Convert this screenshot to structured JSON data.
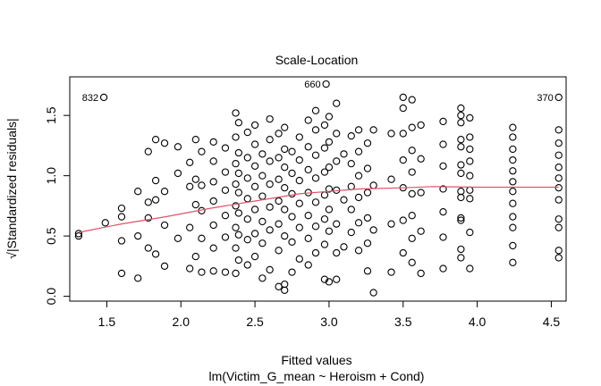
{
  "chart_data": {
    "type": "scatter",
    "title": "Scale-Location",
    "xlabel": "Fitted values",
    "subtitle": "lm(Victim_G_mean ~ Heroism + Cond)",
    "ylabel": "√|Standardized residuals|",
    "xlim": [
      1.25,
      4.6
    ],
    "ylim": [
      -0.04,
      1.82
    ],
    "x_ticks": [
      "1.5",
      "2.0",
      "2.5",
      "3.0",
      "3.5",
      "4.0",
      "4.5"
    ],
    "y_ticks": [
      "0.0",
      "0.5",
      "1.0",
      "1.5"
    ],
    "grid": false,
    "x_levels": [
      1.31,
      1.49,
      1.6,
      1.71,
      1.78,
      1.83,
      1.89,
      1.98,
      2.06,
      2.1,
      2.14,
      2.22,
      2.3,
      2.37,
      2.39,
      2.45,
      2.5,
      2.55,
      2.6,
      2.66,
      2.7,
      2.75,
      2.8,
      2.86,
      2.91,
      2.97,
      3.0,
      3.05,
      3.1,
      3.15,
      3.2,
      3.26,
      3.3,
      3.42,
      3.5,
      3.56,
      3.62,
      3.77,
      3.89,
      3.95,
      4.1,
      4.24,
      4.55
    ],
    "points": [
      {
        "x": 1.31,
        "y": 0.5
      },
      {
        "x": 1.31,
        "y": 0.52
      },
      {
        "x": 1.49,
        "y": 0.61
      },
      {
        "x": 1.6,
        "y": 0.19
      },
      {
        "x": 1.6,
        "y": 0.46
      },
      {
        "x": 1.6,
        "y": 0.66
      },
      {
        "x": 1.6,
        "y": 0.73
      },
      {
        "x": 1.71,
        "y": 0.15
      },
      {
        "x": 1.71,
        "y": 0.5
      },
      {
        "x": 1.71,
        "y": 0.87
      },
      {
        "x": 1.78,
        "y": 0.4
      },
      {
        "x": 1.78,
        "y": 0.65
      },
      {
        "x": 1.78,
        "y": 0.78
      },
      {
        "x": 1.78,
        "y": 1.2
      },
      {
        "x": 1.83,
        "y": 0.35
      },
      {
        "x": 1.83,
        "y": 0.8
      },
      {
        "x": 1.83,
        "y": 0.96
      },
      {
        "x": 1.83,
        "y": 1.3
      },
      {
        "x": 1.89,
        "y": 0.25
      },
      {
        "x": 1.89,
        "y": 0.59
      },
      {
        "x": 1.89,
        "y": 0.87
      },
      {
        "x": 1.89,
        "y": 1.27
      },
      {
        "x": 1.98,
        "y": 0.48
      },
      {
        "x": 1.98,
        "y": 1.02
      },
      {
        "x": 1.98,
        "y": 1.24
      },
      {
        "x": 2.06,
        "y": 0.23
      },
      {
        "x": 2.06,
        "y": 0.57
      },
      {
        "x": 2.06,
        "y": 0.91
      },
      {
        "x": 2.06,
        "y": 1.11
      },
      {
        "x": 2.1,
        "y": 0.33
      },
      {
        "x": 2.1,
        "y": 0.76
      },
      {
        "x": 2.1,
        "y": 0.97
      },
      {
        "x": 2.1,
        "y": 1.3
      },
      {
        "x": 2.14,
        "y": 0.2
      },
      {
        "x": 2.14,
        "y": 0.48
      },
      {
        "x": 2.14,
        "y": 0.71
      },
      {
        "x": 2.14,
        "y": 0.92
      },
      {
        "x": 2.14,
        "y": 1.2
      },
      {
        "x": 2.22,
        "y": 0.21
      },
      {
        "x": 2.22,
        "y": 0.4
      },
      {
        "x": 2.22,
        "y": 0.59
      },
      {
        "x": 2.22,
        "y": 0.79
      },
      {
        "x": 2.22,
        "y": 0.95
      },
      {
        "x": 2.22,
        "y": 1.12
      },
      {
        "x": 2.22,
        "y": 1.28
      },
      {
        "x": 2.3,
        "y": 0.2
      },
      {
        "x": 2.3,
        "y": 0.49
      },
      {
        "x": 2.3,
        "y": 0.67
      },
      {
        "x": 2.3,
        "y": 0.88
      },
      {
        "x": 2.3,
        "y": 1.03
      },
      {
        "x": 2.3,
        "y": 1.23
      },
      {
        "x": 2.37,
        "y": 0.19
      },
      {
        "x": 2.37,
        "y": 0.4
      },
      {
        "x": 2.37,
        "y": 0.57
      },
      {
        "x": 2.37,
        "y": 0.75
      },
      {
        "x": 2.37,
        "y": 0.93
      },
      {
        "x": 2.37,
        "y": 1.1
      },
      {
        "x": 2.37,
        "y": 1.32
      },
      {
        "x": 2.37,
        "y": 1.52
      },
      {
        "x": 2.39,
        "y": 0.3
      },
      {
        "x": 2.39,
        "y": 0.51
      },
      {
        "x": 2.39,
        "y": 0.69
      },
      {
        "x": 2.39,
        "y": 0.86
      },
      {
        "x": 2.39,
        "y": 1.02
      },
      {
        "x": 2.39,
        "y": 1.19
      },
      {
        "x": 2.39,
        "y": 1.44
      },
      {
        "x": 2.45,
        "y": 0.26
      },
      {
        "x": 2.45,
        "y": 0.47
      },
      {
        "x": 2.45,
        "y": 0.64
      },
      {
        "x": 2.45,
        "y": 0.81
      },
      {
        "x": 2.45,
        "y": 0.98
      },
      {
        "x": 2.45,
        "y": 1.15
      },
      {
        "x": 2.45,
        "y": 1.36
      },
      {
        "x": 2.5,
        "y": 0.33
      },
      {
        "x": 2.5,
        "y": 0.52
      },
      {
        "x": 2.5,
        "y": 0.72
      },
      {
        "x": 2.5,
        "y": 0.91
      },
      {
        "x": 2.5,
        "y": 1.08
      },
      {
        "x": 2.5,
        "y": 1.26
      },
      {
        "x": 2.5,
        "y": 1.42
      },
      {
        "x": 2.55,
        "y": 0.15
      },
      {
        "x": 2.55,
        "y": 0.44
      },
      {
        "x": 2.55,
        "y": 0.62
      },
      {
        "x": 2.55,
        "y": 0.83
      },
      {
        "x": 2.55,
        "y": 1.0
      },
      {
        "x": 2.55,
        "y": 1.18
      },
      {
        "x": 2.6,
        "y": 0.22
      },
      {
        "x": 2.6,
        "y": 0.55
      },
      {
        "x": 2.6,
        "y": 0.74
      },
      {
        "x": 2.6,
        "y": 0.93
      },
      {
        "x": 2.6,
        "y": 1.12
      },
      {
        "x": 2.6,
        "y": 1.3
      },
      {
        "x": 2.6,
        "y": 1.47
      },
      {
        "x": 2.66,
        "y": 0.08
      },
      {
        "x": 2.66,
        "y": 0.38
      },
      {
        "x": 2.66,
        "y": 0.6
      },
      {
        "x": 2.66,
        "y": 0.79
      },
      {
        "x": 2.66,
        "y": 0.97
      },
      {
        "x": 2.66,
        "y": 1.15
      },
      {
        "x": 2.66,
        "y": 1.35
      },
      {
        "x": 2.7,
        "y": 0.05
      },
      {
        "x": 2.7,
        "y": 0.1
      },
      {
        "x": 2.7,
        "y": 0.5
      },
      {
        "x": 2.7,
        "y": 0.72
      },
      {
        "x": 2.7,
        "y": 0.9
      },
      {
        "x": 2.7,
        "y": 1.07
      },
      {
        "x": 2.7,
        "y": 1.22
      },
      {
        "x": 2.7,
        "y": 1.4
      },
      {
        "x": 2.75,
        "y": 0.2
      },
      {
        "x": 2.75,
        "y": 0.45
      },
      {
        "x": 2.75,
        "y": 0.66
      },
      {
        "x": 2.75,
        "y": 0.85
      },
      {
        "x": 2.75,
        "y": 1.02
      },
      {
        "x": 2.75,
        "y": 1.2
      },
      {
        "x": 2.8,
        "y": 0.31
      },
      {
        "x": 2.8,
        "y": 0.57
      },
      {
        "x": 2.8,
        "y": 0.77
      },
      {
        "x": 2.8,
        "y": 0.96
      },
      {
        "x": 2.8,
        "y": 1.13
      },
      {
        "x": 2.8,
        "y": 1.32
      },
      {
        "x": 2.86,
        "y": 0.26
      },
      {
        "x": 2.86,
        "y": 0.48
      },
      {
        "x": 2.86,
        "y": 0.67
      },
      {
        "x": 2.86,
        "y": 0.86
      },
      {
        "x": 2.86,
        "y": 1.05
      },
      {
        "x": 2.86,
        "y": 1.24
      },
      {
        "x": 2.86,
        "y": 1.46
      },
      {
        "x": 2.91,
        "y": 0.36
      },
      {
        "x": 2.91,
        "y": 0.58
      },
      {
        "x": 2.91,
        "y": 0.78
      },
      {
        "x": 2.91,
        "y": 0.98
      },
      {
        "x": 2.91,
        "y": 1.17
      },
      {
        "x": 2.91,
        "y": 1.38
      },
      {
        "x": 2.91,
        "y": 1.54
      },
      {
        "x": 2.97,
        "y": 0.14
      },
      {
        "x": 2.97,
        "y": 0.43
      },
      {
        "x": 2.97,
        "y": 0.64
      },
      {
        "x": 2.97,
        "y": 0.84
      },
      {
        "x": 2.97,
        "y": 1.03
      },
      {
        "x": 2.97,
        "y": 1.23
      },
      {
        "x": 2.97,
        "y": 1.42
      },
      {
        "x": 3.0,
        "y": 0.12
      },
      {
        "x": 3.0,
        "y": 0.54
      },
      {
        "x": 3.0,
        "y": 0.72
      },
      {
        "x": 3.0,
        "y": 0.89
      },
      {
        "x": 3.0,
        "y": 1.07
      },
      {
        "x": 3.0,
        "y": 1.28
      },
      {
        "x": 3.0,
        "y": 1.49
      },
      {
        "x": 3.05,
        "y": 0.14
      },
      {
        "x": 3.05,
        "y": 0.36
      },
      {
        "x": 3.05,
        "y": 0.6
      },
      {
        "x": 3.05,
        "y": 0.88
      },
      {
        "x": 3.05,
        "y": 1.12
      },
      {
        "x": 3.05,
        "y": 1.35
      },
      {
        "x": 3.05,
        "y": 1.6
      },
      {
        "x": 3.1,
        "y": 0.41
      },
      {
        "x": 3.1,
        "y": 0.8
      },
      {
        "x": 3.1,
        "y": 1.18
      },
      {
        "x": 3.15,
        "y": 0.53
      },
      {
        "x": 3.15,
        "y": 0.72
      },
      {
        "x": 3.15,
        "y": 0.91
      },
      {
        "x": 3.15,
        "y": 1.1
      },
      {
        "x": 3.15,
        "y": 1.33
      },
      {
        "x": 3.2,
        "y": 0.38
      },
      {
        "x": 3.2,
        "y": 0.61
      },
      {
        "x": 3.2,
        "y": 0.82
      },
      {
        "x": 3.2,
        "y": 1.0
      },
      {
        "x": 3.2,
        "y": 1.2
      },
      {
        "x": 3.2,
        "y": 1.38
      },
      {
        "x": 3.26,
        "y": 0.21
      },
      {
        "x": 3.26,
        "y": 0.44
      },
      {
        "x": 3.26,
        "y": 0.65
      },
      {
        "x": 3.26,
        "y": 0.86
      },
      {
        "x": 3.26,
        "y": 1.06
      },
      {
        "x": 3.26,
        "y": 1.27
      },
      {
        "x": 3.3,
        "y": 0.03
      },
      {
        "x": 3.3,
        "y": 0.55
      },
      {
        "x": 3.3,
        "y": 0.92
      },
      {
        "x": 3.3,
        "y": 1.38
      },
      {
        "x": 3.42,
        "y": 0.2
      },
      {
        "x": 3.42,
        "y": 0.6
      },
      {
        "x": 3.42,
        "y": 0.97
      },
      {
        "x": 3.42,
        "y": 1.35
      },
      {
        "x": 3.5,
        "y": 0.36
      },
      {
        "x": 3.5,
        "y": 0.63
      },
      {
        "x": 3.5,
        "y": 0.9
      },
      {
        "x": 3.5,
        "y": 1.13
      },
      {
        "x": 3.5,
        "y": 1.35
      },
      {
        "x": 3.5,
        "y": 1.56
      },
      {
        "x": 3.5,
        "y": 1.65
      },
      {
        "x": 3.56,
        "y": 0.28
      },
      {
        "x": 3.56,
        "y": 0.48
      },
      {
        "x": 3.56,
        "y": 0.67
      },
      {
        "x": 3.56,
        "y": 0.85
      },
      {
        "x": 3.56,
        "y": 1.03
      },
      {
        "x": 3.56,
        "y": 1.21
      },
      {
        "x": 3.56,
        "y": 1.4
      },
      {
        "x": 3.56,
        "y": 1.63
      },
      {
        "x": 3.62,
        "y": 0.19
      },
      {
        "x": 3.62,
        "y": 0.54
      },
      {
        "x": 3.62,
        "y": 0.86
      },
      {
        "x": 3.62,
        "y": 1.14
      },
      {
        "x": 3.62,
        "y": 1.42
      },
      {
        "x": 3.77,
        "y": 0.23
      },
      {
        "x": 3.77,
        "y": 0.49
      },
      {
        "x": 3.77,
        "y": 0.7
      },
      {
        "x": 3.77,
        "y": 0.89
      },
      {
        "x": 3.77,
        "y": 1.08
      },
      {
        "x": 3.77,
        "y": 1.26
      },
      {
        "x": 3.77,
        "y": 1.45
      },
      {
        "x": 3.89,
        "y": 0.32
      },
      {
        "x": 3.89,
        "y": 0.39
      },
      {
        "x": 3.89,
        "y": 0.63
      },
      {
        "x": 3.89,
        "y": 0.65
      },
      {
        "x": 3.89,
        "y": 0.82
      },
      {
        "x": 3.89,
        "y": 0.87
      },
      {
        "x": 3.89,
        "y": 1.02
      },
      {
        "x": 3.89,
        "y": 1.09
      },
      {
        "x": 3.89,
        "y": 1.24
      },
      {
        "x": 3.89,
        "y": 1.3
      },
      {
        "x": 3.89,
        "y": 1.44
      },
      {
        "x": 3.89,
        "y": 1.5
      },
      {
        "x": 3.89,
        "y": 1.56
      },
      {
        "x": 3.95,
        "y": 0.23
      },
      {
        "x": 3.95,
        "y": 0.53
      },
      {
        "x": 3.95,
        "y": 0.81
      },
      {
        "x": 3.95,
        "y": 0.88
      },
      {
        "x": 3.95,
        "y": 1.0
      },
      {
        "x": 3.95,
        "y": 1.12
      },
      {
        "x": 3.95,
        "y": 1.22
      },
      {
        "x": 3.95,
        "y": 1.32
      },
      {
        "x": 3.95,
        "y": 1.48
      },
      {
        "x": 4.24,
        "y": 0.28
      },
      {
        "x": 4.24,
        "y": 0.42
      },
      {
        "x": 4.24,
        "y": 0.57
      },
      {
        "x": 4.24,
        "y": 0.66
      },
      {
        "x": 4.24,
        "y": 0.77
      },
      {
        "x": 4.24,
        "y": 0.87
      },
      {
        "x": 4.24,
        "y": 0.95
      },
      {
        "x": 4.24,
        "y": 1.04
      },
      {
        "x": 4.24,
        "y": 1.13
      },
      {
        "x": 4.24,
        "y": 1.22
      },
      {
        "x": 4.24,
        "y": 1.32
      },
      {
        "x": 4.24,
        "y": 1.4
      },
      {
        "x": 4.55,
        "y": 0.32
      },
      {
        "x": 4.55,
        "y": 0.38
      },
      {
        "x": 4.55,
        "y": 0.57
      },
      {
        "x": 4.55,
        "y": 0.64
      },
      {
        "x": 4.55,
        "y": 0.8
      },
      {
        "x": 4.55,
        "y": 0.9
      },
      {
        "x": 4.55,
        "y": 0.98
      },
      {
        "x": 4.55,
        "y": 1.07
      },
      {
        "x": 4.55,
        "y": 1.17
      },
      {
        "x": 4.55,
        "y": 1.27
      },
      {
        "x": 4.55,
        "y": 1.38
      }
    ],
    "labeled_points": [
      {
        "label": "832",
        "x": 1.48,
        "y": 1.65
      },
      {
        "label": "660",
        "x": 2.98,
        "y": 1.76
      },
      {
        "label": "370",
        "x": 4.55,
        "y": 1.65
      }
    ],
    "smooth_line": {
      "color": "#DF536B",
      "points": [
        {
          "x": 1.31,
          "y": 0.53
        },
        {
          "x": 1.6,
          "y": 0.6
        },
        {
          "x": 1.9,
          "y": 0.66
        },
        {
          "x": 2.2,
          "y": 0.73
        },
        {
          "x": 2.5,
          "y": 0.79
        },
        {
          "x": 2.8,
          "y": 0.85
        },
        {
          "x": 3.0,
          "y": 0.87
        },
        {
          "x": 3.2,
          "y": 0.89
        },
        {
          "x": 3.5,
          "y": 0.9
        },
        {
          "x": 3.7,
          "y": 0.91
        },
        {
          "x": 4.0,
          "y": 0.905
        },
        {
          "x": 4.3,
          "y": 0.905
        },
        {
          "x": 4.55,
          "y": 0.905
        }
      ]
    },
    "point_color": "#000000"
  }
}
